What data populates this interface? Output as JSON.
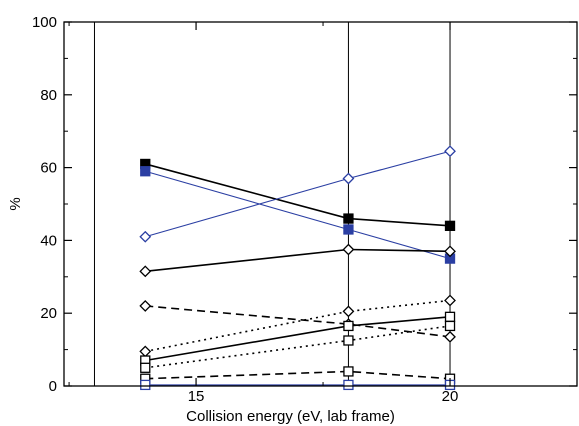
{
  "chart_data": {
    "type": "line",
    "xlabel": "Collision energy (eV, lab frame)",
    "ylabel": "%",
    "xlim": [
      12.4,
      22.5
    ],
    "ylim": [
      0,
      100
    ],
    "x_ticks": [
      15,
      20
    ],
    "x_tick_labels": [
      "15",
      "20"
    ],
    "x_minor_ticks": [
      12.5,
      17.5,
      22.5
    ],
    "y_ticks": [
      0,
      20,
      40,
      60,
      80,
      100
    ],
    "y_tick_labels": [
      "0",
      "20",
      "40",
      "60",
      "80",
      "100"
    ],
    "y_minor_ticks": [
      10,
      30,
      50,
      70,
      90
    ],
    "vertical_gridlines_at": [
      13.0,
      18.0,
      20.0,
      22.5
    ],
    "grid": "vertical lines only",
    "legend": "none",
    "x": [
      14,
      18,
      20
    ],
    "series": [
      {
        "values": [
          61,
          46,
          44
        ],
        "color": "#000000",
        "line": "solid",
        "marker": "square-filled"
      },
      {
        "values": [
          59,
          43,
          35
        ],
        "color": "#2b3fa3",
        "line": "solid",
        "marker": "square-filled"
      },
      {
        "values": [
          41,
          57,
          64.5
        ],
        "color": "#2b3fa3",
        "line": "solid",
        "marker": "diamond-open"
      },
      {
        "values": [
          31.5,
          37.5,
          37
        ],
        "color": "#000000",
        "line": "solid",
        "marker": "diamond-open"
      },
      {
        "values": [
          22,
          17,
          13.5
        ],
        "color": "#000000",
        "line": "dashed",
        "marker": "diamond-open"
      },
      {
        "values": [
          9.5,
          20.5,
          23.5
        ],
        "color": "#000000",
        "line": "dotted",
        "marker": "diamond-open"
      },
      {
        "values": [
          7,
          16.5,
          19
        ],
        "color": "#000000",
        "line": "solid",
        "marker": "square-open"
      },
      {
        "values": [
          5,
          12.5,
          16.5
        ],
        "color": "#000000",
        "line": "dotted",
        "marker": "square-open"
      },
      {
        "values": [
          2,
          4,
          2
        ],
        "color": "#000000",
        "line": "dashed",
        "marker": "square-open"
      },
      {
        "values": [
          0.3,
          0.3,
          0.3
        ],
        "color": "#2b3fa3",
        "line": "solid",
        "marker": "square-open"
      }
    ]
  }
}
